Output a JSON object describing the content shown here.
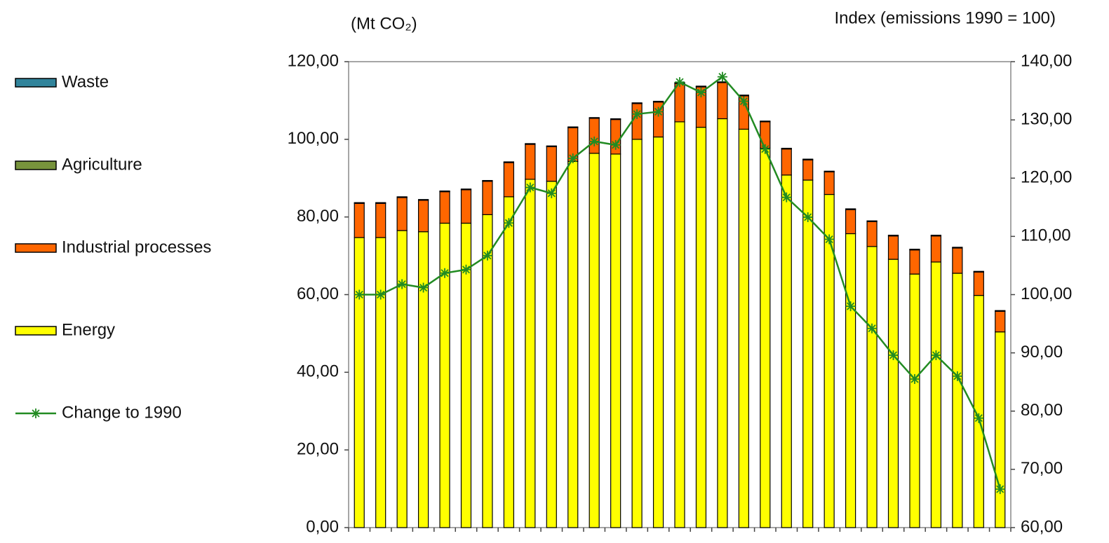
{
  "chart_data": {
    "type": "bar",
    "stacked": true,
    "y_label": "(Mt CO₂)",
    "y2_label": "Index (emissions 1990 = 100)",
    "categories": [
      null,
      null,
      null,
      null,
      null,
      null,
      null,
      null,
      null,
      null,
      null,
      null,
      null,
      null,
      null,
      null,
      null,
      null,
      null,
      null,
      null,
      null,
      null,
      null,
      null,
      null,
      null,
      null,
      null,
      null,
      null
    ],
    "series": [
      {
        "name": "Energy",
        "color": "#ffff00",
        "values": [
          74.7,
          74.7,
          76.5,
          76.2,
          78.4,
          78.4,
          80.6,
          85.2,
          89.7,
          89.2,
          94.3,
          96.4,
          96.2,
          100.0,
          100.6,
          104.5,
          103.1,
          105.3,
          102.6,
          97.7,
          90.8,
          89.5,
          85.8,
          75.7,
          72.4,
          69.1,
          65.3,
          68.4,
          65.5,
          59.8,
          50.4
        ]
      },
      {
        "name": "Industrial processes",
        "color": "#ff6600",
        "values": [
          8.8,
          8.8,
          8.5,
          8.1,
          8.1,
          8.6,
          8.6,
          8.8,
          9.0,
          8.9,
          8.7,
          9.0,
          8.9,
          9.2,
          9.0,
          9.9,
          10.4,
          9.3,
          8.6,
          6.8,
          6.7,
          5.2,
          5.8,
          6.2,
          6.4,
          6.0,
          6.2,
          6.7,
          6.5,
          6.0,
          5.3
        ]
      },
      {
        "name": "Agriculture",
        "color": "#77933c",
        "values": [
          0.1,
          0.1,
          0.1,
          0.1,
          0.1,
          0.1,
          0.1,
          0.1,
          0.1,
          0.1,
          0.1,
          0.1,
          0.1,
          0.1,
          0.1,
          0.1,
          0.1,
          0.1,
          0.1,
          0.1,
          0.1,
          0.1,
          0.1,
          0.1,
          0.1,
          0.1,
          0.1,
          0.1,
          0.1,
          0.1,
          0.1
        ]
      },
      {
        "name": "Waste",
        "color": "#31849b",
        "values": [
          0.1,
          0.1,
          0.1,
          0.1,
          0.1,
          0.1,
          0.1,
          0.1,
          0.1,
          0.1,
          0.1,
          0.1,
          0.1,
          0.1,
          0.1,
          0.1,
          0.1,
          0.1,
          0.1,
          0.1,
          0.1,
          0.1,
          0.1,
          0.1,
          0.1,
          0.1,
          0.1,
          0.1,
          0.1,
          0.1,
          0.1
        ]
      },
      {
        "name": "Change to 1990",
        "color": "#228b22",
        "type": "line",
        "axis": "y2",
        "values": [
          100.0,
          100.0,
          101.8,
          101.2,
          103.7,
          104.3,
          106.7,
          112.3,
          118.4,
          117.4,
          123.4,
          126.3,
          125.7,
          131.0,
          131.4,
          136.5,
          134.7,
          137.4,
          133.2,
          125.0,
          116.7,
          113.3,
          109.5,
          98.0,
          94.2,
          89.6,
          85.5,
          89.6,
          86.0,
          78.8,
          66.6
        ]
      }
    ],
    "ylim": [
      0,
      120
    ],
    "yticks": [
      {
        "value": 0,
        "label": "0,00"
      },
      {
        "value": 20,
        "label": "20,00"
      },
      {
        "value": 40,
        "label": "40,00"
      },
      {
        "value": 60,
        "label": "60,00"
      },
      {
        "value": 80,
        "label": "80,00"
      },
      {
        "value": 100,
        "label": "100,00"
      },
      {
        "value": 120,
        "label": "120,00"
      }
    ],
    "y2lim": [
      60,
      140
    ],
    "y2ticks": [
      {
        "value": 60,
        "label": "60,00"
      },
      {
        "value": 70,
        "label": "70,00"
      },
      {
        "value": 80,
        "label": "80,00"
      },
      {
        "value": 90,
        "label": "90,00"
      },
      {
        "value": 100,
        "label": "100,00"
      },
      {
        "value": 110,
        "label": "110,00"
      },
      {
        "value": 120,
        "label": "120,00"
      },
      {
        "value": 130,
        "label": "130,00"
      },
      {
        "value": 140,
        "label": "140,00"
      }
    ],
    "grid": false,
    "legend": "left"
  }
}
